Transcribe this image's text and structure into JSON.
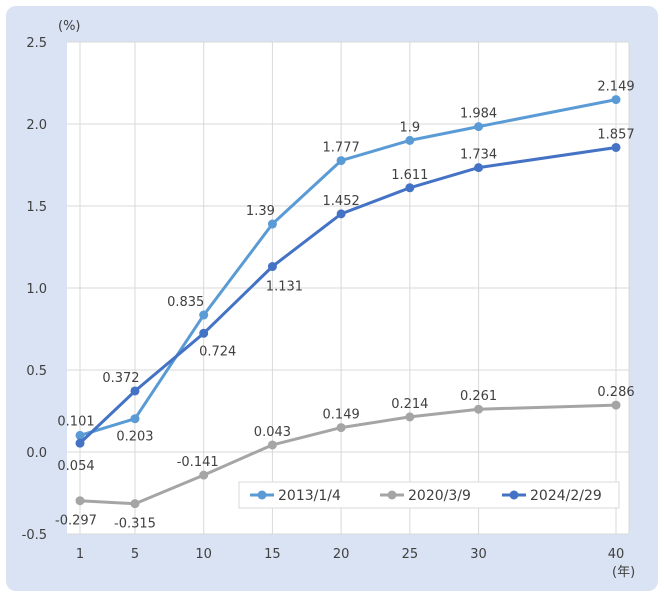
{
  "chart_data": {
    "type": "line",
    "x": [
      1,
      5,
      10,
      15,
      20,
      25,
      30,
      40
    ],
    "x_tick_labels": [
      "1",
      "5",
      "10",
      "15",
      "20",
      "25",
      "30",
      "40"
    ],
    "y_tick_labels": [
      "2.5",
      "2.0",
      "1.5",
      "1.0",
      "0.5",
      "0.0",
      "-0.5"
    ],
    "ylim": [
      -0.5,
      2.5
    ],
    "xlim": [
      1,
      40
    ],
    "y_unit": "(%)",
    "x_unit": "(年)",
    "grid": true,
    "legend_position": "bottom-right",
    "series": [
      {
        "name": "2013/1/4",
        "color": "#5B9BD5",
        "values": [
          0.101,
          0.203,
          0.835,
          1.39,
          1.777,
          1.9,
          1.984,
          2.149
        ],
        "labels": [
          "0.101",
          "0.203",
          "0.835",
          "1.39",
          "1.777",
          "1.9",
          "1.984",
          "2.149"
        ]
      },
      {
        "name": "2020/3/9",
        "color": "#A5A5A5",
        "values": [
          -0.297,
          -0.315,
          -0.141,
          0.043,
          0.149,
          0.214,
          0.261,
          0.286
        ],
        "labels": [
          "-0.297",
          "-0.315",
          "-0.141",
          "0.043",
          "0.149",
          "0.214",
          "0.261",
          "0.286"
        ]
      },
      {
        "name": "2024/2/29",
        "color": "#4472C4",
        "values": [
          0.054,
          0.372,
          0.724,
          1.131,
          1.452,
          1.611,
          1.734,
          1.857
        ],
        "labels": [
          "0.054",
          "0.372",
          "0.724",
          "1.131",
          "1.452",
          "1.611",
          "1.734",
          "1.857"
        ]
      }
    ]
  },
  "colors": {
    "frame_background": "#D9E3F3",
    "plot_background": "#FFFFFF",
    "grid": "#D9D9D9",
    "text": "#404040"
  }
}
